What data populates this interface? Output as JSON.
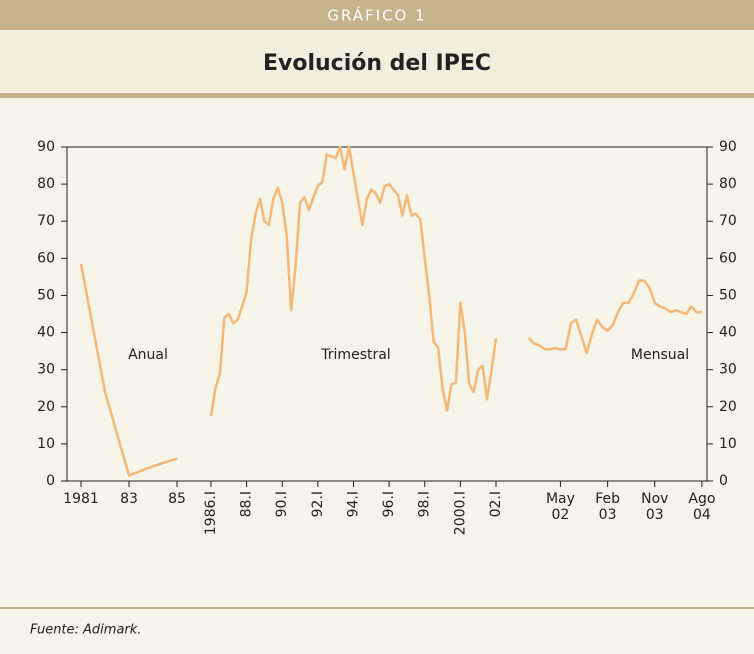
{
  "header": {
    "label": "GRÁFICO 1"
  },
  "chart_data": {
    "type": "line",
    "title": "Evolución del IPEC",
    "color": "#f5b878",
    "ylim": [
      0,
      90
    ],
    "yticks": [
      0,
      10,
      20,
      30,
      40,
      50,
      60,
      70,
      80,
      90
    ],
    "y2lim": [
      0,
      90
    ],
    "y2ticks": [
      0,
      10,
      20,
      30,
      40,
      50,
      60,
      70,
      80,
      90
    ],
    "series": [
      {
        "name": "Anual",
        "categories": [
          "1981",
          null,
          "83",
          null,
          "85"
        ],
        "values": [
          58.5,
          24,
          1.5,
          4,
          6
        ]
      },
      {
        "name": "Trimestral",
        "categories": [
          "1986.I",
          null,
          null,
          null,
          null,
          null,
          null,
          null,
          "88.I",
          null,
          null,
          null,
          null,
          null,
          null,
          null,
          "90.I",
          null,
          null,
          null,
          null,
          null,
          null,
          null,
          "92.I",
          null,
          null,
          null,
          null,
          null,
          null,
          null,
          "94.I",
          null,
          null,
          null,
          null,
          null,
          null,
          null,
          "96.I",
          null,
          null,
          null,
          null,
          null,
          null,
          null,
          "98.I",
          null,
          null,
          null,
          null,
          null,
          null,
          null,
          "2000.I",
          null,
          null,
          null,
          null,
          null,
          null,
          null,
          "02.I"
        ],
        "values": [
          17.5,
          25,
          29,
          44,
          45,
          42.5,
          43.5,
          47,
          51,
          65,
          72,
          76,
          70,
          69,
          76,
          79,
          75,
          66,
          46,
          58,
          75,
          76.5,
          73,
          76.5,
          79.5,
          80.5,
          88,
          87.5,
          87,
          90,
          84,
          90,
          83,
          76,
          69,
          76,
          78.5,
          77.5,
          75,
          79.5,
          80,
          78.5,
          77,
          71.5,
          77,
          71.5,
          72,
          70.5,
          60,
          50,
          37.5,
          36,
          25,
          19,
          26,
          26.5,
          48,
          40,
          26,
          24,
          30,
          31,
          22,
          30,
          38.5
        ]
      },
      {
        "name": "Mensual",
        "categories": [
          null,
          null,
          null,
          null,
          null,
          null,
          "May 02",
          null,
          null,
          null,
          null,
          null,
          null,
          null,
          null,
          "Feb 03",
          null,
          null,
          null,
          null,
          null,
          null,
          null,
          null,
          "Nov 03",
          null,
          null,
          null,
          null,
          null,
          null,
          null,
          null,
          "Ago 04"
        ],
        "values": [
          38.5,
          37,
          36.5,
          35.5,
          35.5,
          35.8,
          35.5,
          35.5,
          42.5,
          43.5,
          39,
          34.5,
          39.5,
          43.5,
          41.5,
          40.5,
          42,
          45.5,
          48,
          48,
          50.5,
          54,
          54,
          52,
          48,
          47,
          46.5,
          45.5,
          46,
          45.5,
          45,
          47,
          45.5,
          45.5
        ]
      }
    ]
  },
  "footer": {
    "source": "Fuente: Adimark."
  }
}
